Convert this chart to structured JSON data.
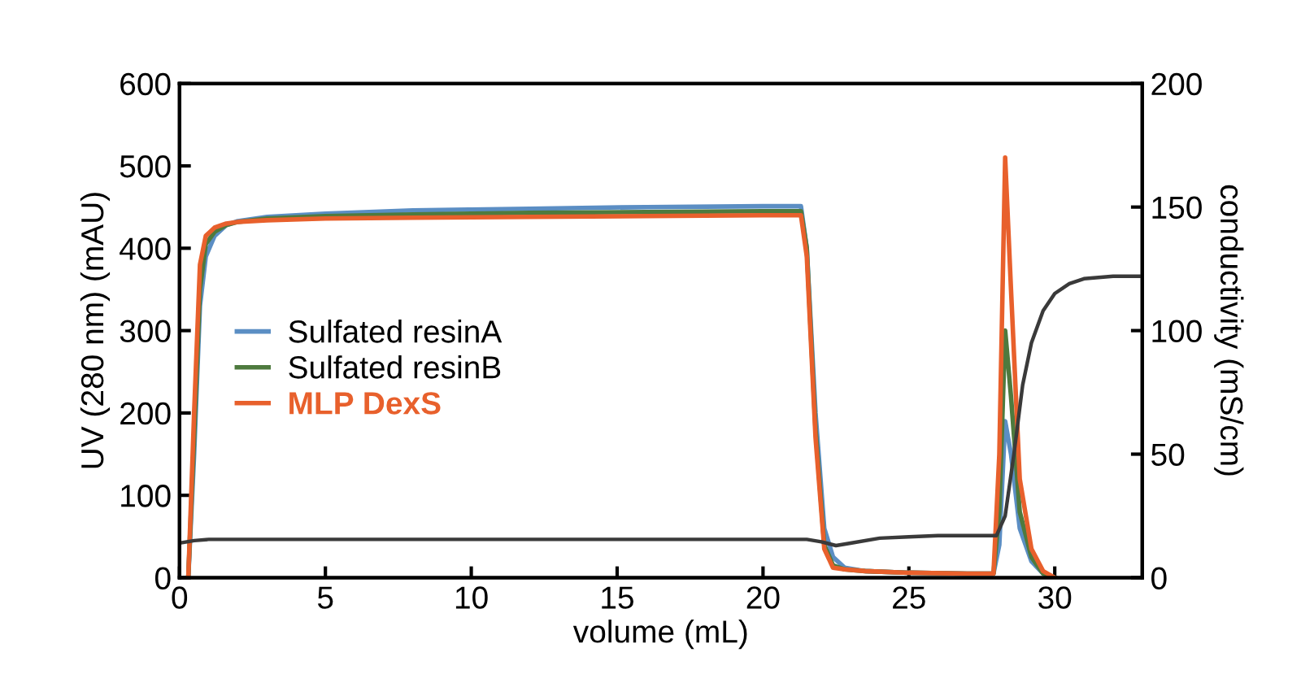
{
  "chart_data": {
    "type": "line",
    "xlabel": "volume (mL)",
    "ylabel": "UV (280 nm) (mAU)",
    "y2label": "conductivity (mS/cm)",
    "xlim": [
      0,
      33
    ],
    "xticks": [
      0,
      5,
      10,
      15,
      20,
      25,
      30
    ],
    "ylim": [
      0,
      600
    ],
    "yticks": [
      0,
      100,
      200,
      300,
      400,
      500,
      600
    ],
    "y2lim": [
      0,
      200
    ],
    "y2ticks": [
      0,
      50,
      100,
      150,
      200
    ],
    "legend": "left",
    "grid": false,
    "marker": "none",
    "line_style": "solid",
    "series": [
      {
        "name": "Sulfated resinA",
        "color": "#5b8ec4",
        "x": [
          0.3,
          0.5,
          0.7,
          0.9,
          1.2,
          1.6,
          2,
          3,
          5,
          8,
          12,
          16,
          20,
          21.3,
          21.5,
          21.8,
          22.1,
          22.4,
          22.8,
          23.5,
          25,
          27,
          27.9,
          28.1,
          28.3,
          28.5,
          28.8,
          29.2,
          29.6,
          30
        ],
        "values": [
          0,
          150,
          330,
          390,
          415,
          428,
          433,
          438,
          442,
          446,
          448,
          450,
          451,
          451,
          400,
          200,
          60,
          25,
          12,
          8,
          6,
          5,
          5,
          40,
          190,
          150,
          60,
          20,
          5,
          0
        ]
      },
      {
        "name": "Sulfated resinB",
        "color": "#4e7a3e",
        "x": [
          0.3,
          0.5,
          0.7,
          0.9,
          1.2,
          1.6,
          2,
          3,
          5,
          8,
          12,
          16,
          20,
          21.3,
          21.5,
          21.8,
          22.1,
          22.4,
          22.8,
          23.5,
          25,
          27,
          27.9,
          28.1,
          28.3,
          28.5,
          28.8,
          29.2,
          29.6,
          30
        ],
        "values": [
          0,
          170,
          350,
          405,
          420,
          428,
          432,
          436,
          439,
          441,
          443,
          444,
          445,
          445,
          400,
          180,
          40,
          15,
          10,
          8,
          6,
          5,
          5,
          80,
          300,
          220,
          80,
          25,
          5,
          0
        ]
      },
      {
        "name": "MLP DexS",
        "color": "#e8602c",
        "x": [
          0.3,
          0.5,
          0.7,
          0.9,
          1.2,
          1.6,
          2,
          3,
          5,
          8,
          12,
          16,
          20,
          21.3,
          21.5,
          21.8,
          22.1,
          22.4,
          22.8,
          23.5,
          25,
          27,
          27.9,
          28.1,
          28.3,
          28.5,
          28.8,
          29.2,
          29.6,
          30
        ],
        "values": [
          0,
          200,
          380,
          415,
          425,
          430,
          432,
          434,
          436,
          437,
          438,
          439,
          440,
          440,
          390,
          170,
          35,
          12,
          10,
          8,
          6,
          5,
          5,
          150,
          510,
          350,
          120,
          35,
          8,
          0
        ]
      },
      {
        "color": "#3a3a3a",
        "axis": "y2",
        "x": [
          0,
          0.5,
          1,
          5,
          10,
          15,
          20,
          21.5,
          22,
          22.5,
          23,
          24,
          25,
          26,
          27,
          28,
          28.3,
          28.6,
          28.9,
          29.2,
          29.6,
          30,
          30.5,
          31,
          32,
          33
        ],
        "values": [
          14,
          15,
          15.5,
          15.5,
          15.5,
          15.5,
          15.5,
          15.5,
          14.5,
          13,
          14,
          16,
          16.5,
          17,
          17,
          17,
          25,
          50,
          78,
          95,
          108,
          115,
          119,
          121,
          122,
          122
        ]
      }
    ]
  }
}
